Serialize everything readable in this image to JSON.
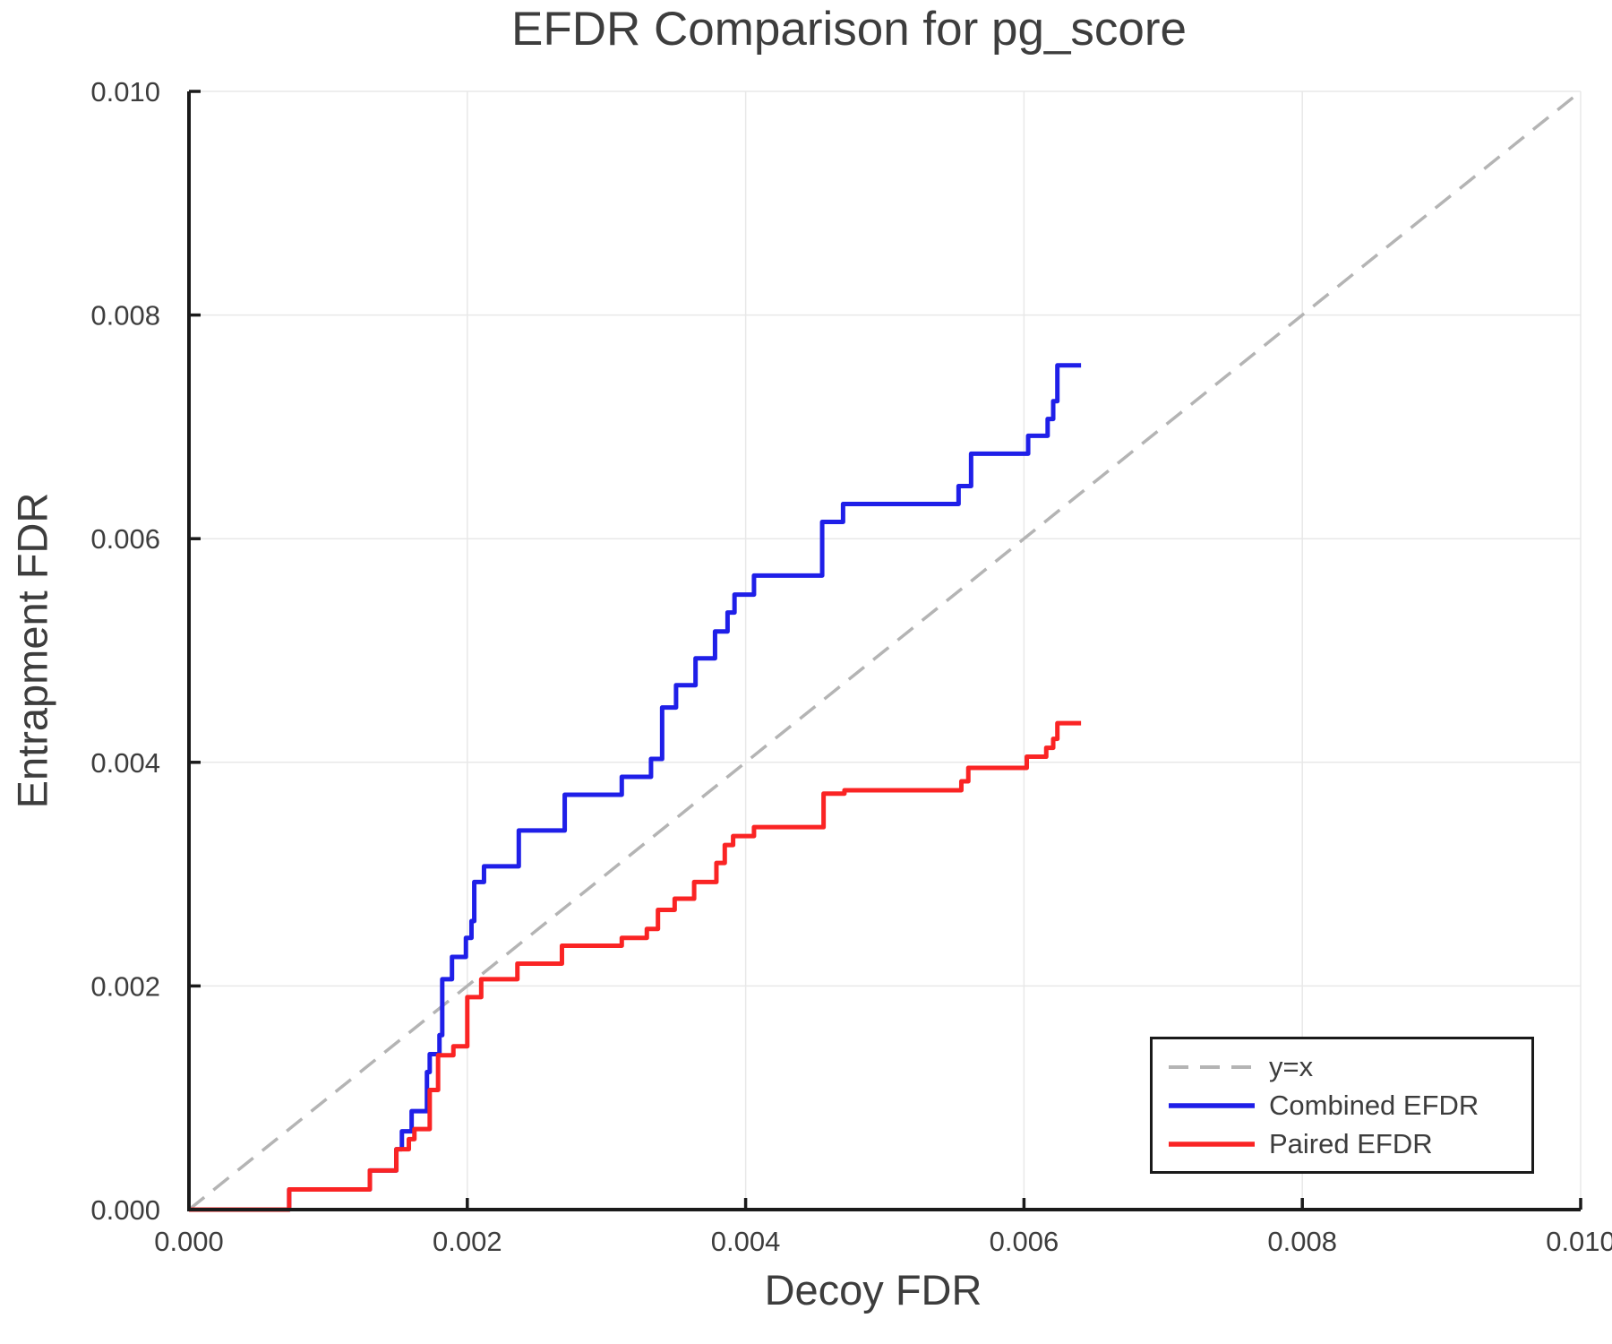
{
  "chart_data": {
    "type": "line",
    "title": "EFDR Comparison for pg_score",
    "xlabel": "Decoy FDR",
    "ylabel": "Entrapment FDR",
    "xlim": [
      0.0,
      0.01
    ],
    "ylim": [
      0.0,
      0.01
    ],
    "grid": true,
    "legend_position": "lower right",
    "xticks": {
      "values": [
        0.0,
        0.002,
        0.004,
        0.006,
        0.008,
        0.01
      ],
      "labels": [
        "0.000",
        "0.002",
        "0.004",
        "0.006",
        "0.008",
        "0.010"
      ]
    },
    "yticks": {
      "values": [
        0.0,
        0.002,
        0.004,
        0.006,
        0.008,
        0.01
      ],
      "labels": [
        "0.000",
        "0.002",
        "0.004",
        "0.006",
        "0.008",
        "0.010"
      ]
    },
    "series": [
      {
        "name": "y=x",
        "color": "#b4b4b4",
        "dashed": true,
        "step": false,
        "width": 3.5,
        "points": [
          [
            0.0,
            0.0
          ],
          [
            0.01,
            0.01
          ]
        ]
      },
      {
        "name": "Combined EFDR",
        "color": "#1f1fe8",
        "dashed": false,
        "step": true,
        "width": 5,
        "points": [
          [
            0.0,
            0.0
          ],
          [
            0.00072,
            0.00018
          ],
          [
            0.0013,
            0.00035
          ],
          [
            0.00149,
            0.00054
          ],
          [
            0.00153,
            0.0007
          ],
          [
            0.0016,
            0.00088
          ],
          [
            0.00171,
            0.00123
          ],
          [
            0.00173,
            0.00139
          ],
          [
            0.0018,
            0.00156
          ],
          [
            0.00182,
            0.00206
          ],
          [
            0.00189,
            0.00226
          ],
          [
            0.00199,
            0.00243
          ],
          [
            0.00203,
            0.00258
          ],
          [
            0.00205,
            0.00293
          ],
          [
            0.00212,
            0.00307
          ],
          [
            0.00237,
            0.00339
          ],
          [
            0.0027,
            0.00371
          ],
          [
            0.00311,
            0.00387
          ],
          [
            0.00332,
            0.00403
          ],
          [
            0.0034,
            0.00449
          ],
          [
            0.0035,
            0.00469
          ],
          [
            0.00364,
            0.00493
          ],
          [
            0.00378,
            0.00517
          ],
          [
            0.00387,
            0.00534
          ],
          [
            0.00392,
            0.0055
          ],
          [
            0.00406,
            0.00567
          ],
          [
            0.00455,
            0.00615
          ],
          [
            0.0047,
            0.00631
          ],
          [
            0.00553,
            0.00647
          ],
          [
            0.00562,
            0.00676
          ],
          [
            0.00603,
            0.00692
          ],
          [
            0.00617,
            0.00707
          ],
          [
            0.00621,
            0.00723
          ],
          [
            0.00624,
            0.00755
          ],
          [
            0.00641,
            0.00755
          ]
        ]
      },
      {
        "name": "Paired EFDR",
        "color": "#fa2424",
        "dashed": false,
        "step": true,
        "width": 5,
        "points": [
          [
            0.0,
            0.0
          ],
          [
            0.00072,
            0.00018
          ],
          [
            0.0013,
            0.00035
          ],
          [
            0.00149,
            0.00054
          ],
          [
            0.00158,
            0.00063
          ],
          [
            0.00162,
            0.00072
          ],
          [
            0.00173,
            0.00107
          ],
          [
            0.00179,
            0.00138
          ],
          [
            0.0019,
            0.00146
          ],
          [
            0.002,
            0.0019
          ],
          [
            0.0021,
            0.00206
          ],
          [
            0.00236,
            0.0022
          ],
          [
            0.00268,
            0.00236
          ],
          [
            0.00311,
            0.00243
          ],
          [
            0.00329,
            0.00251
          ],
          [
            0.00337,
            0.00268
          ],
          [
            0.00349,
            0.00278
          ],
          [
            0.00363,
            0.00293
          ],
          [
            0.00379,
            0.0031
          ],
          [
            0.00385,
            0.00326
          ],
          [
            0.00391,
            0.00334
          ],
          [
            0.00406,
            0.00342
          ],
          [
            0.00456,
            0.00372
          ],
          [
            0.00471,
            0.00375
          ],
          [
            0.00555,
            0.00383
          ],
          [
            0.0056,
            0.00395
          ],
          [
            0.00602,
            0.00405
          ],
          [
            0.00616,
            0.00413
          ],
          [
            0.00621,
            0.00421
          ],
          [
            0.00624,
            0.00435
          ],
          [
            0.00641,
            0.00435
          ]
        ]
      }
    ],
    "colors": {
      "grid": "#e8e8e8",
      "spine": "#1a1a1a",
      "text": "#3d3d3d"
    }
  }
}
